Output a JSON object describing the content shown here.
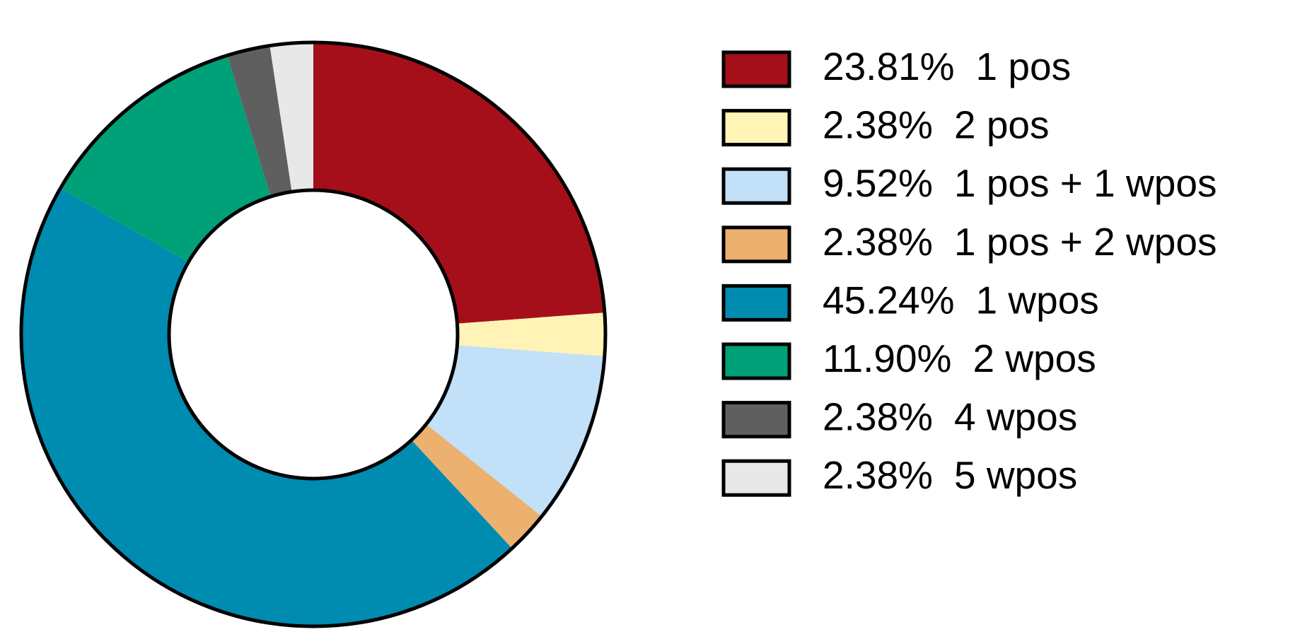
{
  "chart_data": {
    "type": "donut",
    "categories": [
      "1 pos",
      "2 pos",
      "1 pos + 1 wpos",
      "1 pos + 2 wpos",
      "1 wpos",
      "2 wpos",
      "4 wpos",
      "5 wpos"
    ],
    "values": [
      23.81,
      2.38,
      9.52,
      2.38,
      45.24,
      11.9,
      2.38,
      2.38
    ],
    "value_labels": [
      "23.81%",
      "2.38%",
      "9.52%",
      "2.38%",
      "45.24%",
      "11.90%",
      "2.38%",
      "2.38%"
    ],
    "colors": [
      "#a50f1a",
      "#fff3b5",
      "#c2e0f8",
      "#ecb06f",
      "#008bb0",
      "#00a078",
      "#5f5f5f",
      "#e8e8e8"
    ],
    "legend": "right"
  }
}
